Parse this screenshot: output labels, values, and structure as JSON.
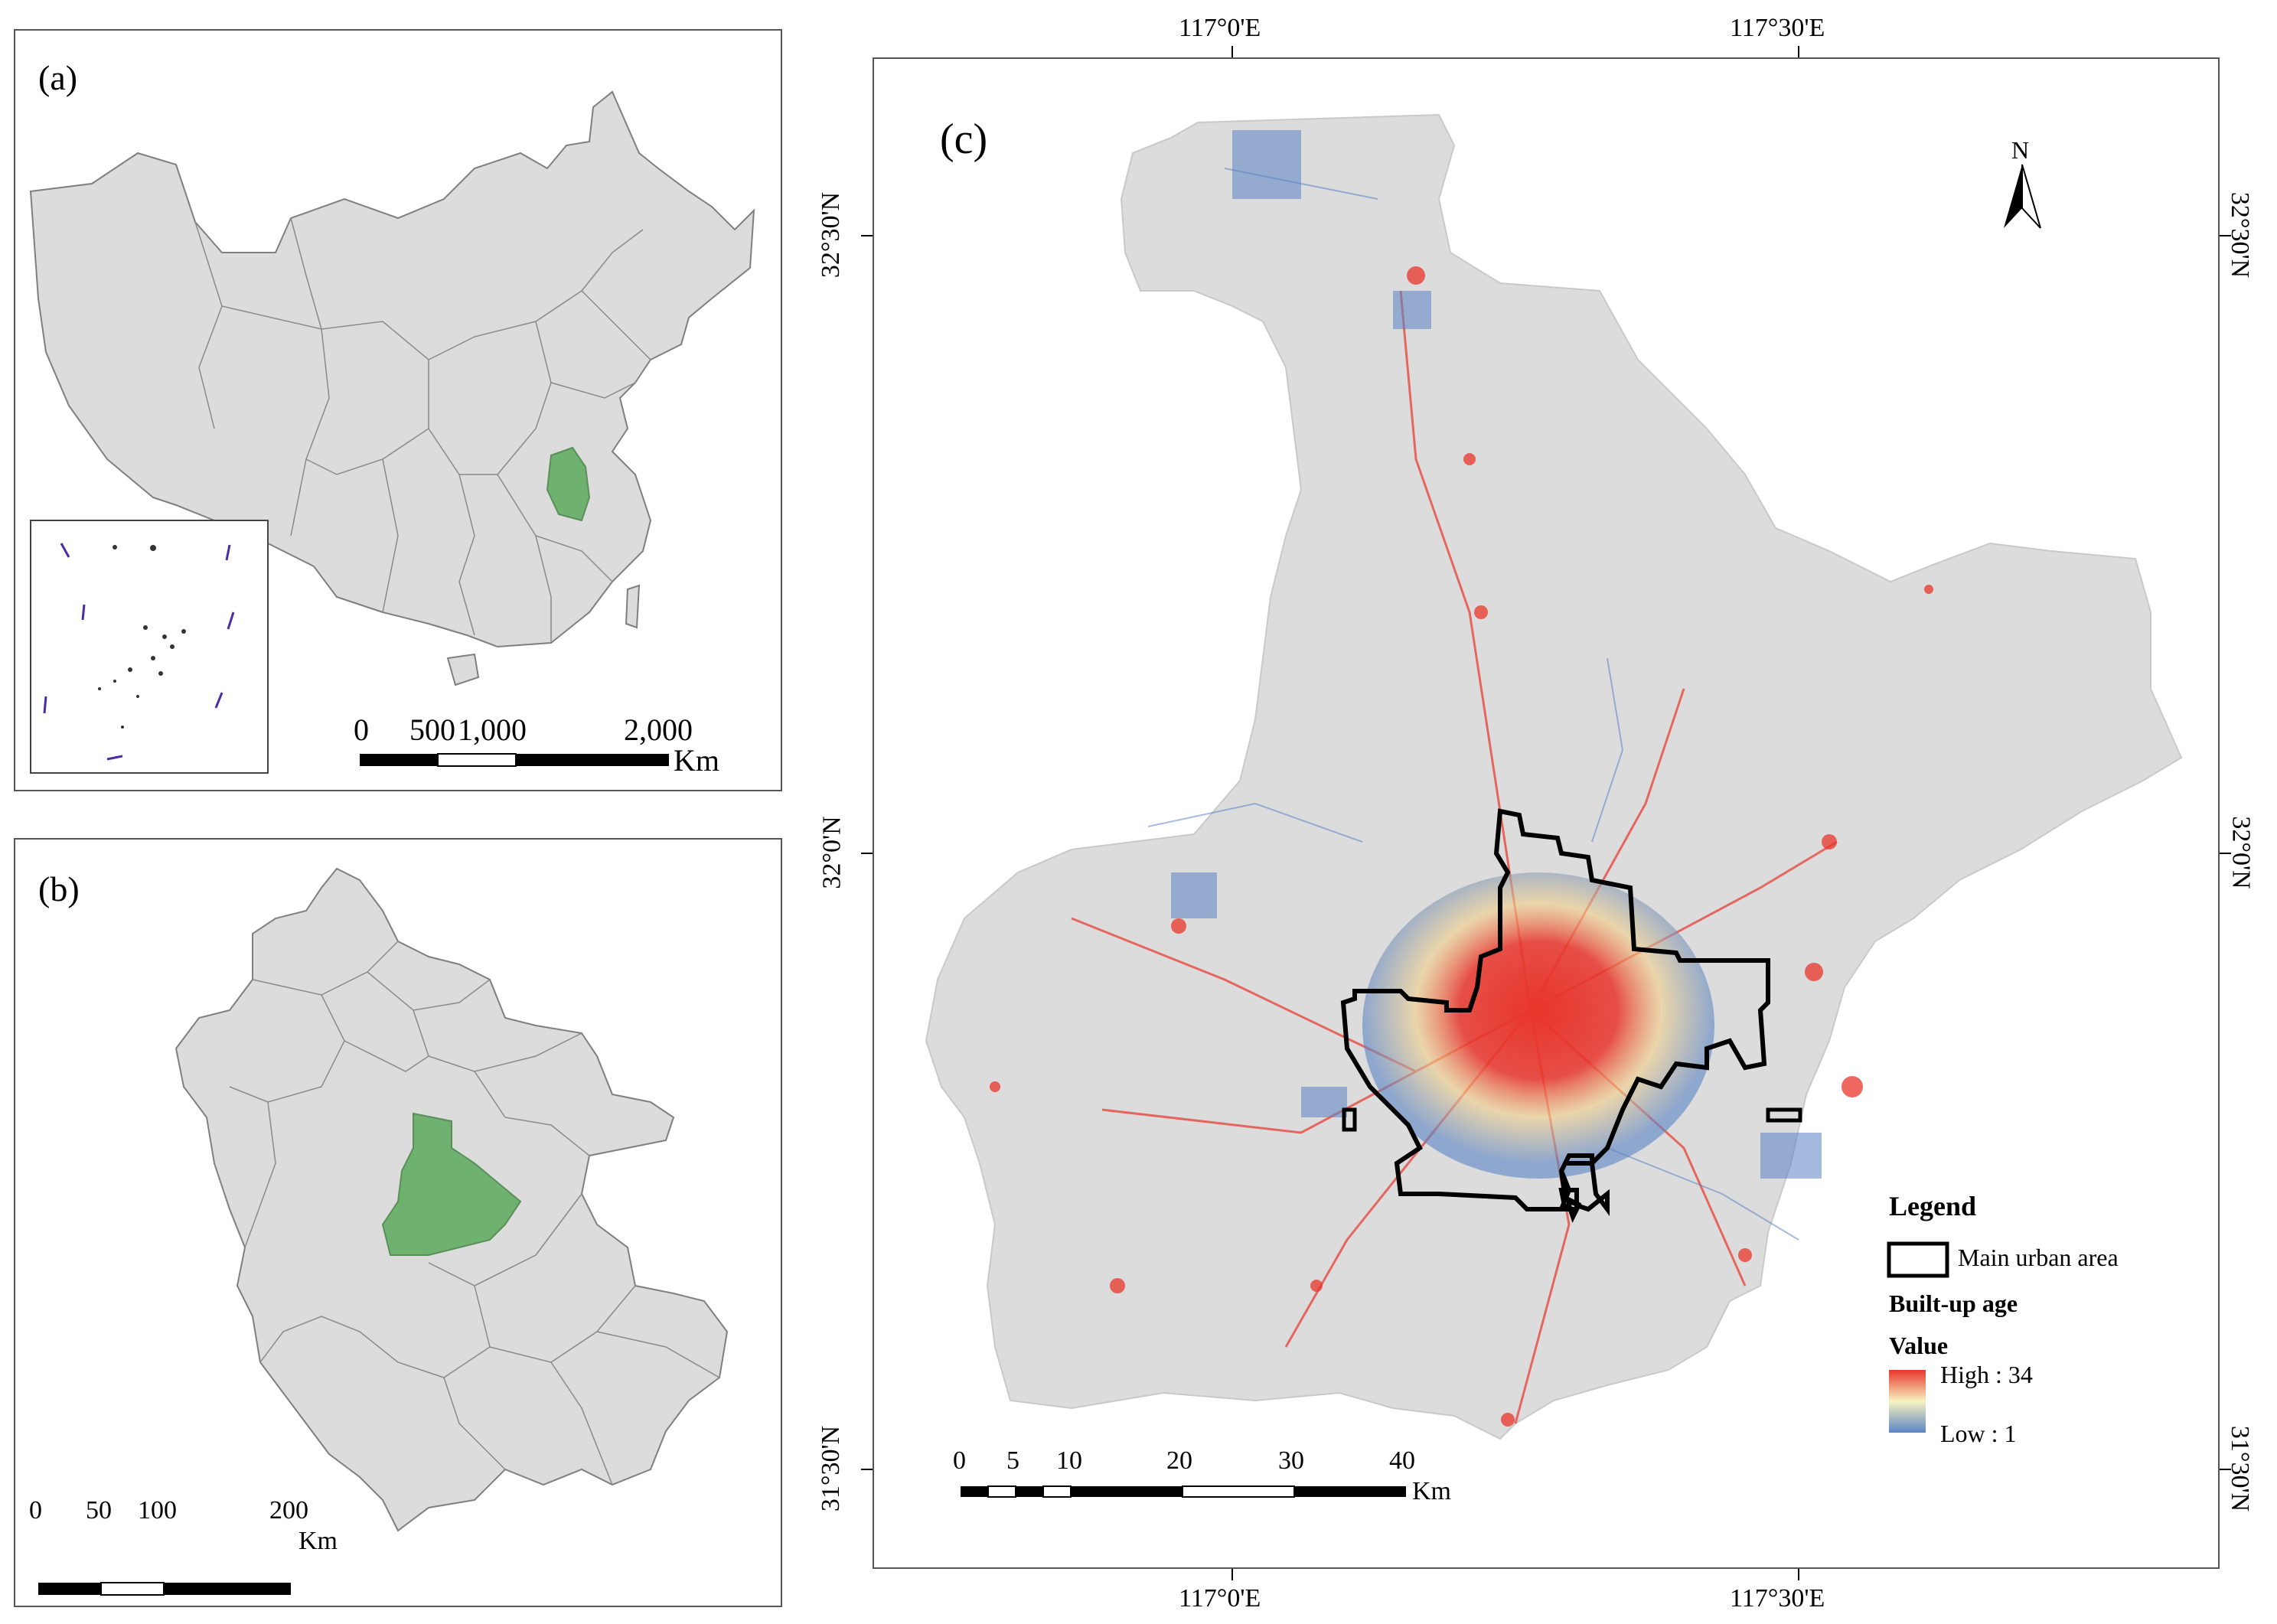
{
  "panel_a": {
    "label": "(a)",
    "scale": {
      "ticks": [
        "0",
        "500",
        "1,000",
        "2,000"
      ],
      "unit": "Km"
    }
  },
  "panel_b": {
    "label": "(b)",
    "scale": {
      "ticks": [
        "0",
        "50",
        "100",
        "200"
      ],
      "unit": "Km"
    }
  },
  "panel_c": {
    "label": "(c)",
    "north": "N",
    "x_ticks_top": [
      "117°0'E",
      "117°30'E"
    ],
    "x_ticks_bottom": [
      "117°0'E",
      "117°30'E"
    ],
    "y_ticks_left": [
      "32°30'N",
      "32°0'N",
      "31°30'N"
    ],
    "y_ticks_right": [
      "32°30'N",
      "32°0'N",
      "31°30'N"
    ],
    "scale": {
      "ticks": [
        "0",
        "5",
        "10",
        "20",
        "30",
        "40"
      ],
      "unit": "Km"
    },
    "legend": {
      "title": "Legend",
      "urban_label": "Main urban area",
      "built_up_title": "Built-up age",
      "value_title": "Value",
      "high": "High : 34",
      "low": "Low : 1"
    }
  },
  "colors": {
    "land": "#dcdcdc",
    "highlight": "#6fb16f",
    "high": "#e8352b",
    "mid": "#f8f3c0",
    "low": "#5a84c4",
    "boundary": "#7f7f7f"
  }
}
